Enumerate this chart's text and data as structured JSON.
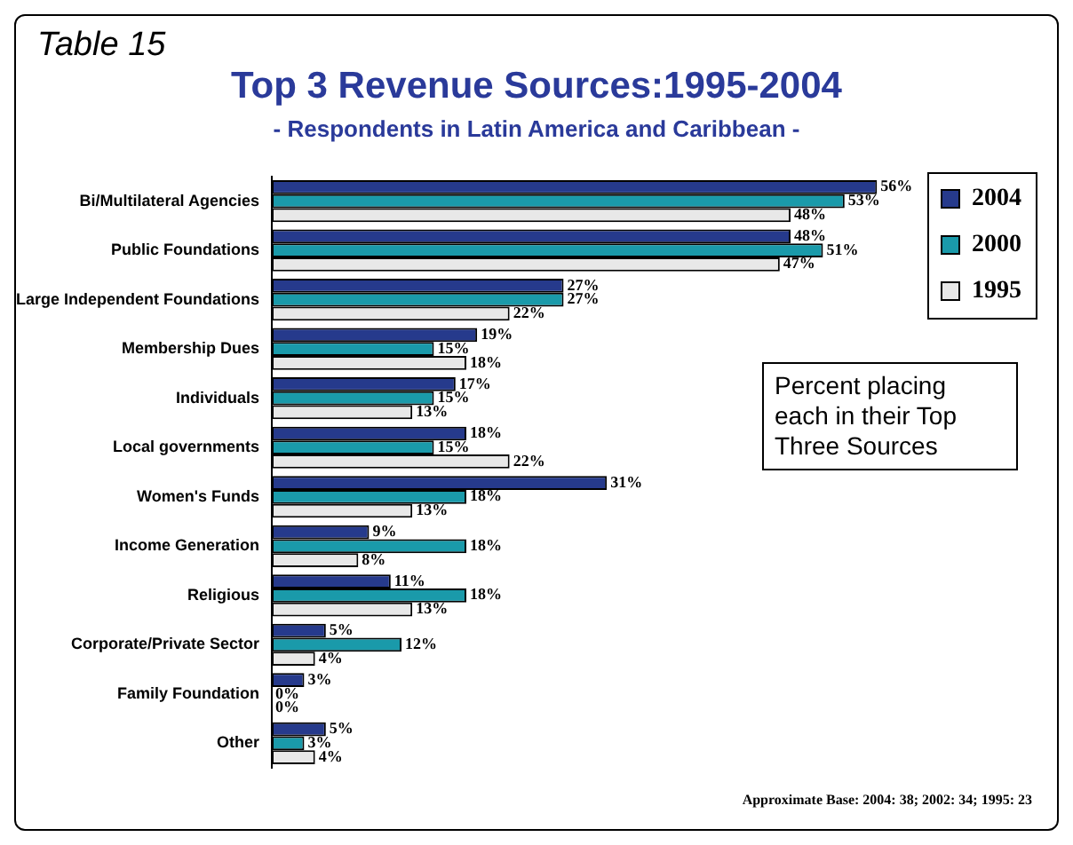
{
  "chart_data": {
    "type": "bar",
    "orientation": "horizontal",
    "title": "Top 3 Revenue Sources:1995-2004",
    "subtitle": "- Respondents in Latin America and Caribbean -",
    "categories": [
      "Bi/Multilateral Agencies",
      "Public Foundations",
      "Large Independent Foundations",
      "Membership Dues",
      "Individuals",
      "Local governments",
      "Women's Funds",
      "Income Generation",
      "Religious",
      "Corporate/Private Sector",
      "Family Foundation",
      "Other"
    ],
    "series": [
      {
        "name": "2004",
        "color": "#263a8c",
        "values": [
          56,
          48,
          27,
          19,
          17,
          18,
          31,
          9,
          11,
          5,
          3,
          5
        ],
        "value_labels": [
          "56%",
          "48%",
          "27%",
          "19%",
          "17%",
          "18%",
          "31%",
          "9%",
          "11%",
          "5%",
          "3%",
          "5%"
        ]
      },
      {
        "name": "2000",
        "color": "#1a9aaa",
        "values": [
          53,
          51,
          27,
          15,
          15,
          15,
          18,
          18,
          18,
          12,
          0,
          3
        ],
        "value_labels": [
          "53%",
          "51%",
          "27%",
          "15%",
          "15%",
          "15%",
          "18%",
          "18%",
          "18%",
          "12%",
          "0%",
          "3%"
        ]
      },
      {
        "name": "1995",
        "color": "#e8e8e8",
        "values": [
          48,
          47,
          22,
          18,
          13,
          22,
          13,
          8,
          13,
          4,
          0,
          4
        ],
        "value_labels": [
          "48%",
          "47%",
          "22%",
          "18%",
          "13%",
          "22%",
          "13%",
          "8%",
          "13%",
          "4%",
          "0%",
          "4%"
        ]
      }
    ],
    "legend": "top right",
    "grid": false,
    "annotations": [
      "Table 15",
      "Percent placing each in their Top Three Sources",
      "Approximate Base: 2004: 38; 2002: 34; 1995: 23"
    ]
  }
}
